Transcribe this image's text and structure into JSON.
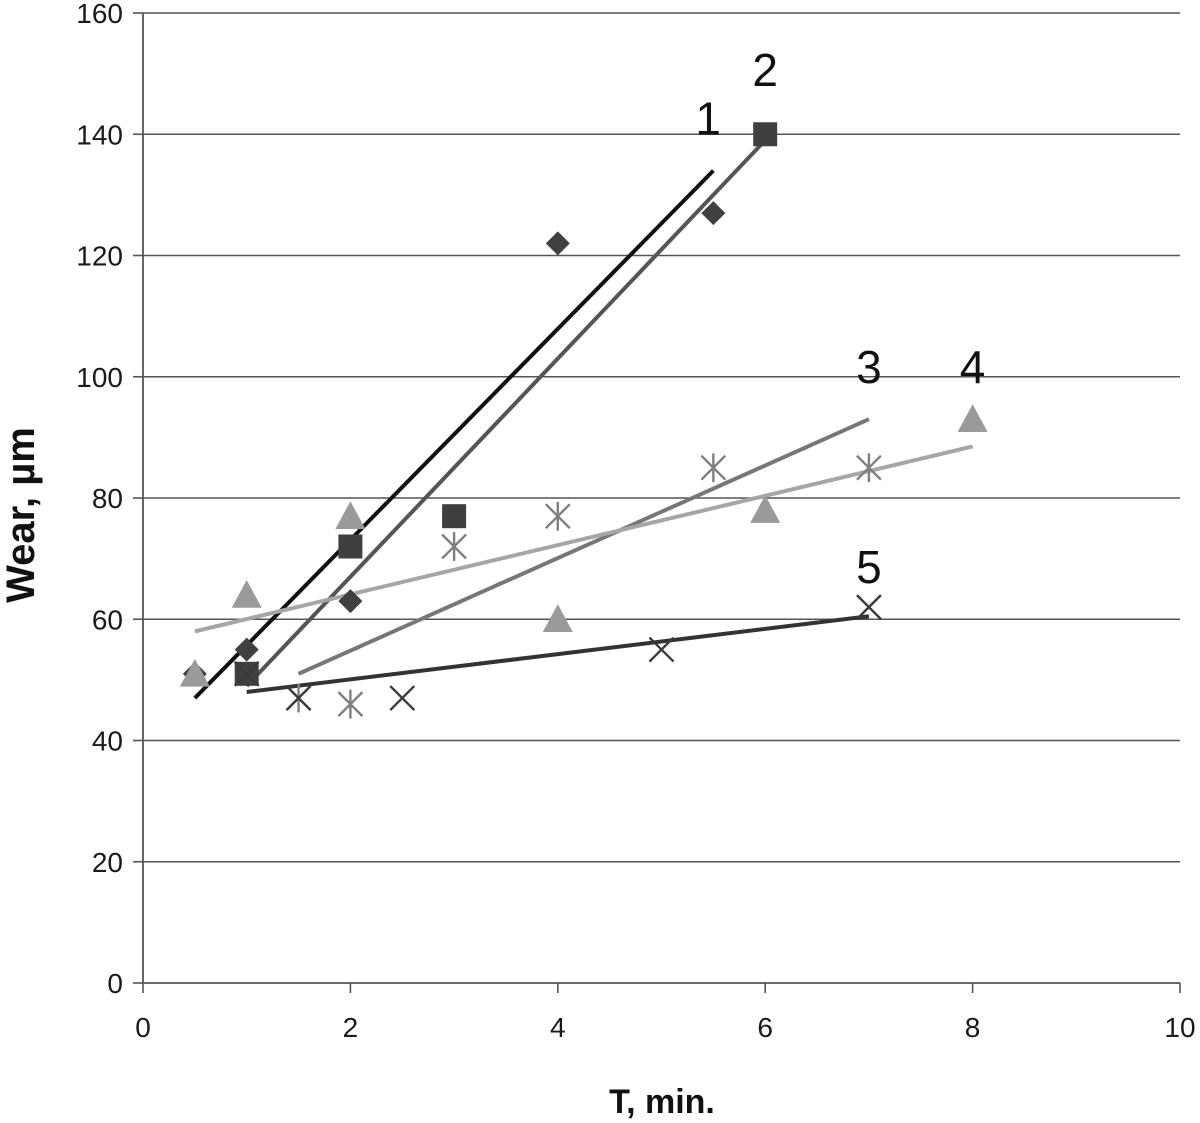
{
  "chart_data": {
    "type": "scatter",
    "xlabel": "T, min.",
    "ylabel": "Wear, µm",
    "xlim": [
      0,
      10
    ],
    "ylim": [
      0,
      160
    ],
    "x_ticks": [
      0,
      2,
      4,
      6,
      8,
      10
    ],
    "y_ticks": [
      0,
      20,
      40,
      60,
      80,
      100,
      120,
      140,
      160
    ],
    "x_tick_labels": [
      "0",
      "2",
      "4",
      "6",
      "8",
      "10"
    ],
    "y_tick_labels": [
      "0",
      "20",
      "40",
      "60",
      "80",
      "100",
      "120",
      "140",
      "160"
    ],
    "grid": "horizontal",
    "legend": "none",
    "series": [
      {
        "label": "1",
        "marker": "diamond",
        "marker_color": "#404040",
        "line_color": "#111111",
        "points": [
          [
            0.5,
            51
          ],
          [
            1,
            55
          ],
          [
            2,
            63
          ],
          [
            4,
            122
          ],
          [
            5.5,
            127
          ]
        ],
        "trend": [
          [
            0.5,
            47
          ],
          [
            5.5,
            134
          ]
        ],
        "label_pos": [
          5.45,
          140
        ]
      },
      {
        "label": "2",
        "marker": "square",
        "marker_color": "#3f3f3f",
        "line_color": "#555555",
        "points": [
          [
            1,
            51
          ],
          [
            2,
            72
          ],
          [
            3,
            77
          ],
          [
            6,
            140
          ]
        ],
        "trend": [
          [
            1,
            49
          ],
          [
            6,
            139
          ]
        ],
        "label_pos": [
          6.0,
          148
        ]
      },
      {
        "label": "3",
        "marker": "asterisk",
        "marker_color": "#7f7f7f",
        "line_color": "#777777",
        "points": [
          [
            1.5,
            47
          ],
          [
            2,
            46
          ],
          [
            3,
            72
          ],
          [
            4,
            77
          ],
          [
            5.5,
            85
          ],
          [
            7,
            85
          ]
        ],
        "trend": [
          [
            1.5,
            51
          ],
          [
            7,
            93
          ]
        ],
        "label_pos": [
          7.0,
          99
        ]
      },
      {
        "label": "4",
        "marker": "triangle",
        "marker_color": "#9a9a9a",
        "line_color": "#a6a6a6",
        "points": [
          [
            0.5,
            51
          ],
          [
            1,
            64
          ],
          [
            2,
            77
          ],
          [
            4,
            60
          ],
          [
            6,
            78
          ],
          [
            8,
            93
          ]
        ],
        "trend": [
          [
            0.5,
            58
          ],
          [
            8,
            88.5
          ]
        ],
        "label_pos": [
          8.0,
          99
        ]
      },
      {
        "label": "5",
        "marker": "x",
        "marker_color": "#3a3a3a",
        "line_color": "#333333",
        "points": [
          [
            1,
            51
          ],
          [
            1.5,
            47
          ],
          [
            2.5,
            47
          ],
          [
            5,
            55
          ],
          [
            7,
            62
          ]
        ],
        "trend": [
          [
            1,
            48
          ],
          [
            7,
            60.5
          ]
        ],
        "label_pos": [
          7.0,
          66
        ]
      }
    ]
  }
}
